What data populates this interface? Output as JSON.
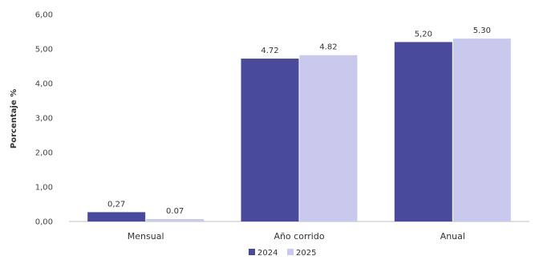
{
  "chart_data": {
    "type": "bar",
    "categories": [
      "Mensual",
      "Año corrido",
      "Anual"
    ],
    "series": [
      {
        "name": "2024",
        "values": [
          0.27,
          4.72,
          5.2
        ],
        "labels": [
          "0,27",
          "4.72",
          "5,20"
        ],
        "color": "#4a4a9c"
      },
      {
        "name": "2025",
        "values": [
          0.07,
          4.82,
          5.3
        ],
        "labels": [
          "0.07",
          "4.82",
          "5.30"
        ],
        "color": "#c9c9ee"
      }
    ],
    "ylabel": "Porcentaje %",
    "ylim": [
      0,
      6
    ],
    "yticks": [
      "0,00",
      "1,00",
      "2,00",
      "3,00",
      "4,00",
      "5,00",
      "6,00"
    ],
    "grid": false,
    "legend_position": "bottom"
  }
}
